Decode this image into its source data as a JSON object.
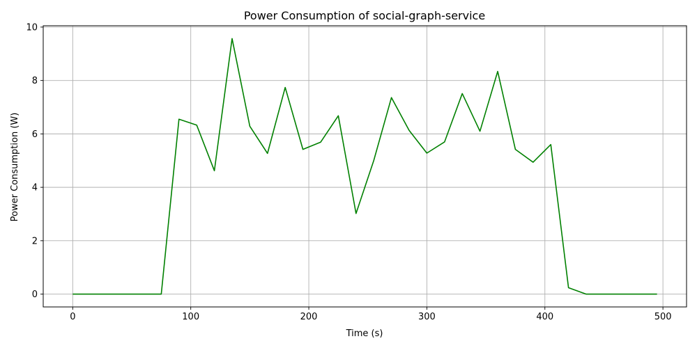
{
  "chart_data": {
    "type": "line",
    "title": "Power Consumption of social-graph-service",
    "xlabel": "Time (s)",
    "ylabel": "Power Consumption (W)",
    "xlim": [
      -25,
      520
    ],
    "ylim": [
      -0.48,
      10.05
    ],
    "xticks": [
      0,
      100,
      200,
      300,
      400,
      500
    ],
    "xtick_labels": [
      "0",
      "100",
      "200",
      "300",
      "400",
      "500"
    ],
    "yticks": [
      0,
      2,
      4,
      6,
      8,
      10
    ],
    "ytick_labels": [
      "0",
      "2",
      "4",
      "6",
      "8",
      "10"
    ],
    "grid": true,
    "series": [
      {
        "color": "#008000",
        "x": [
          0,
          15,
          30,
          45,
          60,
          75,
          90,
          105,
          120,
          135,
          150,
          165,
          180,
          195,
          210,
          225,
          240,
          255,
          270,
          285,
          300,
          315,
          330,
          345,
          360,
          375,
          390,
          405,
          420,
          435,
          450,
          465,
          480,
          495
        ],
        "y": [
          0,
          0,
          0,
          0,
          0,
          0,
          6.55,
          6.33,
          4.62,
          9.57,
          6.29,
          5.27,
          7.74,
          5.42,
          5.69,
          6.68,
          3.02,
          5.0,
          7.36,
          6.13,
          5.28,
          5.7,
          7.51,
          6.1,
          8.34,
          5.42,
          4.94,
          5.6,
          0.24,
          0,
          0,
          0,
          0,
          0
        ]
      }
    ]
  }
}
